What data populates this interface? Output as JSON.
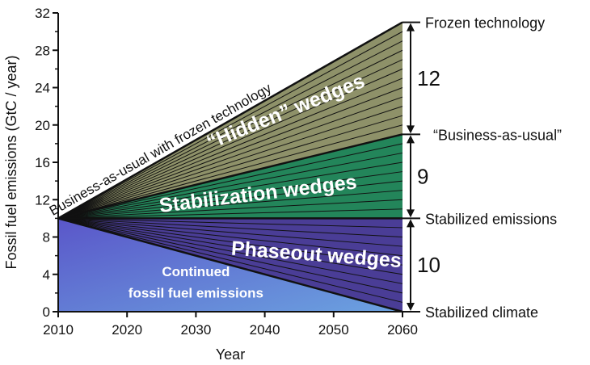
{
  "chart_data": {
    "type": "area",
    "xlabel": "Year",
    "ylabel": "Fossil fuel emissions  (GtC / year)",
    "xlim": [
      2010,
      2060
    ],
    "ylim": [
      0,
      32
    ],
    "x_ticks": [
      "2010",
      "2020",
      "2030",
      "2040",
      "2050",
      "2060"
    ],
    "x_tick_values": [
      2010,
      2020,
      2030,
      2040,
      2050,
      2060
    ],
    "y_ticks": [
      "0",
      "4",
      "8",
      "12",
      "16",
      "20",
      "24",
      "28",
      "32"
    ],
    "y_tick_values": [
      0,
      4,
      8,
      12,
      16,
      20,
      24,
      28,
      32
    ],
    "start": {
      "x": 2010,
      "y": 10
    },
    "series": [
      {
        "name": "Frozen technology",
        "x": [
          2010,
          2060
        ],
        "y": [
          10,
          31
        ]
      },
      {
        "name": "“Business-as-usual”",
        "x": [
          2010,
          2060
        ],
        "y": [
          10,
          19
        ]
      },
      {
        "name": "Stabilized emissions",
        "x": [
          2010,
          2060
        ],
        "y": [
          10,
          10
        ]
      },
      {
        "name": "Stabilized climate",
        "x": [
          2010,
          2060
        ],
        "y": [
          10,
          0
        ]
      }
    ],
    "bands": [
      {
        "label": "“Hidden” wedges",
        "lower": "“Business-as-usual”",
        "upper": "Frozen technology",
        "wedges": 12,
        "count_label": "12",
        "color": "#8e9169"
      },
      {
        "label": "Stabilization wedges",
        "lower": "Stabilized emissions",
        "upper": "“Business-as-usual”",
        "wedges": 9,
        "count_label": "9",
        "color": "#23855a"
      },
      {
        "label": "Phaseout wedges",
        "lower": "Stabilized climate",
        "upper": "Stabilized emissions",
        "wedges": 10,
        "count_label": "10",
        "color": "#4a3d96"
      }
    ],
    "annotations": {
      "frozen_line": "Business-as-usual with frozen technology",
      "continued": [
        "Continued",
        "fossil fuel emissions"
      ]
    },
    "colors": {
      "continued_top": "#5a56c9",
      "continued_bottom": "#6ba2e0",
      "axis": "#111111"
    }
  }
}
